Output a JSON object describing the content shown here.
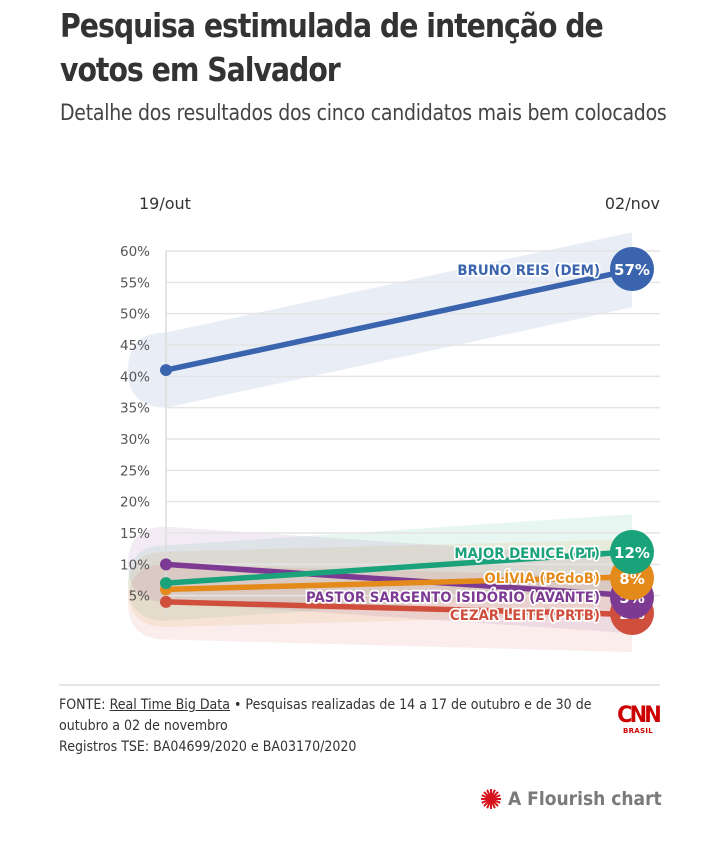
{
  "header": {
    "title": "Pesquisa estimulada de intenção de votos em Salvador",
    "subtitle": "Detalhe dos resultados dos cinco candidatos mais bem colocados"
  },
  "chart_data": {
    "type": "line",
    "title": "Pesquisa estimulada de intenção de votos em Salvador",
    "subtitle": "Detalhe dos resultados dos cinco candidatos mais bem colocados",
    "x": [
      "19/out",
      "02/nov"
    ],
    "xlabel": "",
    "ylabel": "",
    "ylim": [
      0,
      60
    ],
    "yticks": [
      5,
      10,
      15,
      20,
      25,
      30,
      35,
      40,
      45,
      50,
      55,
      60
    ],
    "ytick_labels": [
      "5%",
      "10%",
      "15%",
      "20%",
      "25%",
      "30%",
      "35%",
      "40%",
      "45%",
      "50%",
      "55%",
      "60%"
    ],
    "grid": true,
    "confidence_band": "±6 percentage points (shaded)",
    "series": [
      {
        "name": "BRUNO REIS (DEM)",
        "color": "#3a64ad",
        "values": [
          41,
          57
        ],
        "end_label": "57%"
      },
      {
        "name": "MAJOR DENICE (PT)",
        "color": "#1aa27a",
        "values": [
          7,
          12
        ],
        "end_label": "12%"
      },
      {
        "name": "OLÍVIA (PCdoB)",
        "color": "#e48a1b",
        "values": [
          6,
          8
        ],
        "end_label": "8%"
      },
      {
        "name": "PASTOR SARGENTO ISIDÓRIO (AVANTE)",
        "color": "#7d3a93",
        "values": [
          10,
          5
        ],
        "end_label": "5%"
      },
      {
        "name": "CEZAR LEITE (PRTB)",
        "color": "#cf4f3c",
        "values": [
          4,
          2
        ],
        "end_label": "2%"
      }
    ]
  },
  "footer": {
    "source_prefix": "FONTE: ",
    "source_link": "Real Time Big Data",
    "source_suffix": " • Pesquisas realizadas de 14 a 17 de outubro e de 30 de outubro a 02 de novembro",
    "registry": "Registros TSE: BA04699/2020 e BA03170/2020",
    "logo_mark": "CNN",
    "logo_sub": "BRASIL",
    "flourish_label": "A Flourish chart"
  }
}
